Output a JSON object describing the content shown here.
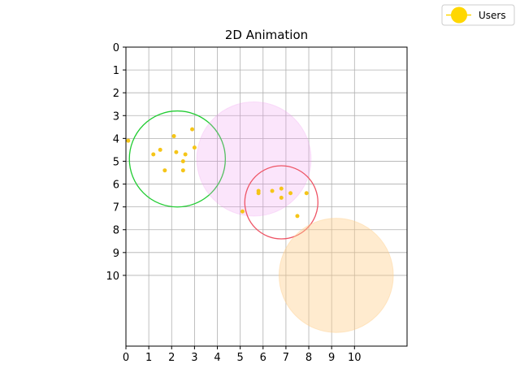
{
  "chart_data": {
    "type": "scatter",
    "title": "2D Animation",
    "xlabel": "",
    "ylabel": "",
    "xlim": [
      0,
      12.3
    ],
    "ylim": [
      13.1,
      0
    ],
    "y_inverted": true,
    "xticks": [
      0,
      1,
      2,
      3,
      4,
      5,
      6,
      7,
      8,
      9,
      10
    ],
    "yticks": [
      0,
      1,
      2,
      3,
      4,
      5,
      6,
      7,
      8,
      9,
      10
    ],
    "grid": true,
    "legend": {
      "position": "top-right",
      "entries": [
        {
          "label": "Users",
          "color": "#FFD700",
          "marker": "circle"
        }
      ]
    },
    "series": [
      {
        "name": "Users",
        "color": "#F5C518",
        "points": [
          {
            "x": 2.9,
            "y": 3.6
          },
          {
            "x": 2.1,
            "y": 3.9
          },
          {
            "x": 3.0,
            "y": 4.4
          },
          {
            "x": 1.5,
            "y": 4.5
          },
          {
            "x": 2.2,
            "y": 4.6
          },
          {
            "x": 1.2,
            "y": 4.7
          },
          {
            "x": 2.6,
            "y": 4.7
          },
          {
            "x": 2.5,
            "y": 5.0
          },
          {
            "x": 1.7,
            "y": 5.4
          },
          {
            "x": 2.5,
            "y": 5.4
          },
          {
            "x": 0.1,
            "y": 4.1
          },
          {
            "x": 5.8,
            "y": 6.3
          },
          {
            "x": 5.8,
            "y": 6.4
          },
          {
            "x": 6.4,
            "y": 6.3
          },
          {
            "x": 6.8,
            "y": 6.2
          },
          {
            "x": 7.2,
            "y": 6.4
          },
          {
            "x": 7.9,
            "y": 6.4
          },
          {
            "x": 6.8,
            "y": 6.6
          },
          {
            "x": 5.1,
            "y": 7.2
          },
          {
            "x": 7.5,
            "y": 7.4
          }
        ]
      }
    ],
    "circles": [
      {
        "cx": 2.25,
        "cy": 4.9,
        "r": 2.1,
        "style": "outline",
        "color": "#22CC33"
      },
      {
        "cx": 5.6,
        "cy": 4.9,
        "r": 2.5,
        "style": "filled",
        "color": "#EE99EE",
        "opacity": 0.25
      },
      {
        "cx": 6.8,
        "cy": 6.8,
        "r": 1.6,
        "style": "outline",
        "color": "#EE5566"
      },
      {
        "cx": 9.2,
        "cy": 10.0,
        "r": 2.5,
        "style": "filled",
        "color": "#FFCC88",
        "opacity": 0.4
      }
    ]
  }
}
